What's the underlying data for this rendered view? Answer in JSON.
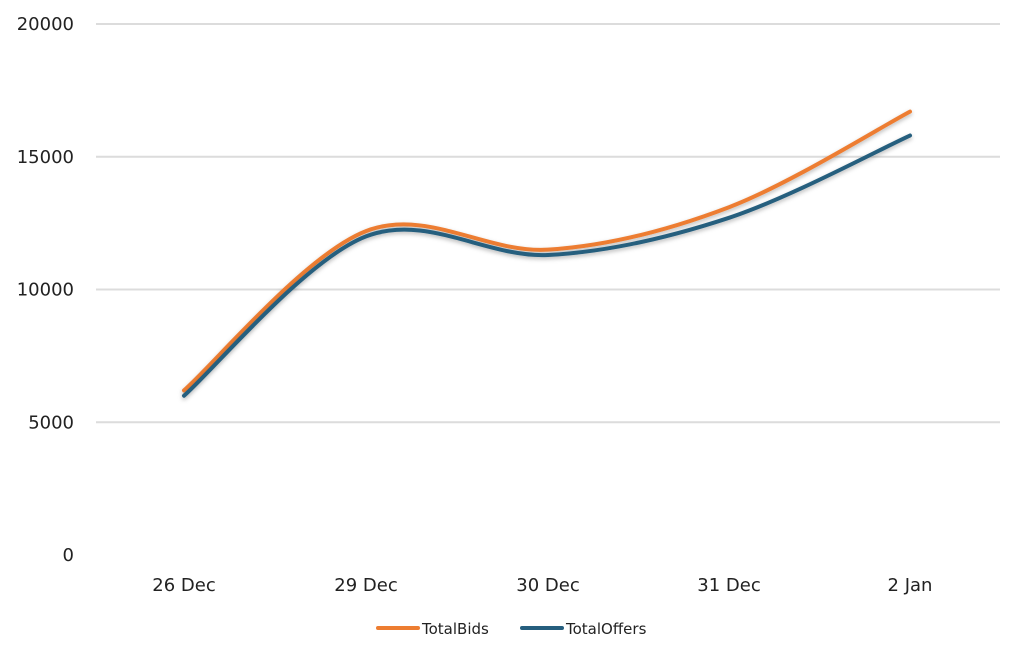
{
  "chart_data": {
    "type": "line",
    "title": "",
    "xlabel": "",
    "ylabel": "",
    "categories": [
      "26 Dec",
      "29 Dec",
      "30 Dec",
      "31 Dec",
      "2 Jan"
    ],
    "series": [
      {
        "name": "TotalBids",
        "color": "#ED7D31",
        "values": [
          6200,
          12200,
          11500,
          13100,
          16700
        ]
      },
      {
        "name": "TotalOffers",
        "color": "#255E7E",
        "values": [
          6000,
          12000,
          11300,
          12700,
          15800
        ]
      }
    ],
    "yticks": [
      0,
      5000,
      10000,
      15000,
      20000
    ],
    "ylim": [
      0,
      20000
    ],
    "grid": true,
    "smooth": true,
    "legend_position": "bottom-center"
  }
}
